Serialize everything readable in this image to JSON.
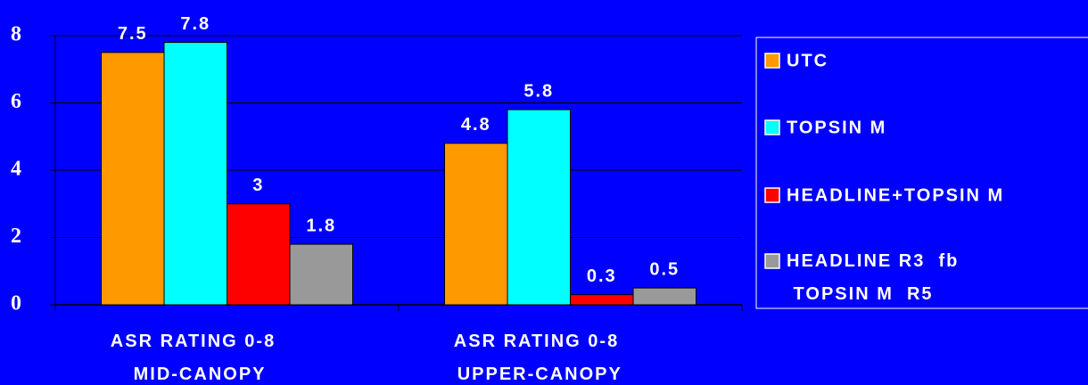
{
  "chart_data": {
    "type": "bar",
    "categories": [
      "ASR RATING 0-8\n  MID-CANOPY",
      "ASR RATING 0-8\n UPPER-CANOPY"
    ],
    "series": [
      {
        "name": "UTC",
        "color": "#ff9900",
        "values": [
          7.5,
          4.8
        ]
      },
      {
        "name": "TOPSIN M",
        "color": "#00ffff",
        "values": [
          7.8,
          5.8
        ]
      },
      {
        "name": "HEADLINE+TOPSIN M",
        "color": "#ff0000",
        "values": [
          3,
          0.3
        ]
      },
      {
        "name": "HEADLINE R3  fb\n TOPSIN M  R5",
        "color": "#999999",
        "values": [
          1.8,
          0.5
        ]
      }
    ],
    "ylim": [
      0,
      8
    ],
    "yticks": [
      0,
      2,
      4,
      6,
      8
    ],
    "grid": true,
    "legend": "right"
  }
}
